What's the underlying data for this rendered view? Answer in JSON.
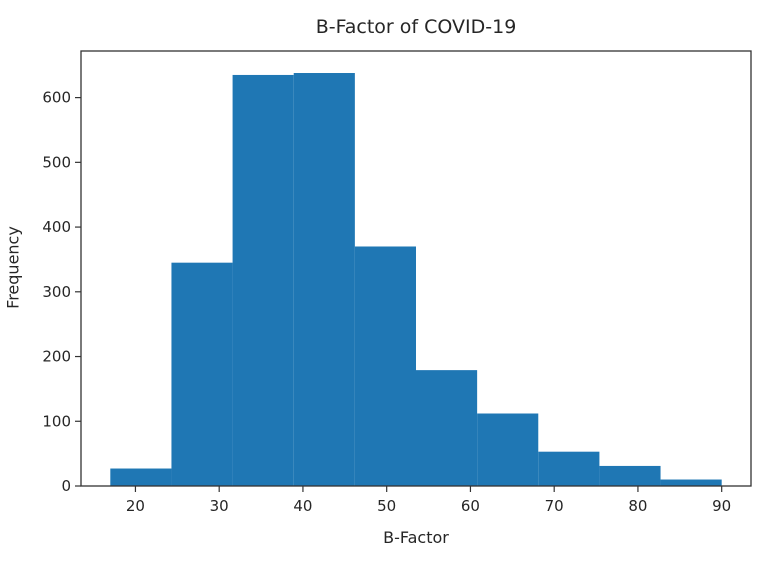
{
  "chart_data": {
    "type": "bar",
    "subtype": "histogram",
    "title": "B-Factor of COVID-19",
    "xlabel": "B-Factor",
    "ylabel": "Frequency",
    "bin_edges": [
      17.0,
      24.3,
      31.6,
      38.9,
      46.2,
      53.5,
      60.8,
      68.1,
      75.4,
      82.7,
      90.0
    ],
    "values": [
      27,
      345,
      635,
      638,
      370,
      179,
      112,
      53,
      31,
      10
    ],
    "xlim": [
      13.5,
      93.5
    ],
    "ylim": [
      0,
      672
    ],
    "xticks": [
      20,
      30,
      40,
      50,
      60,
      70,
      80,
      90
    ],
    "yticks": [
      0,
      100,
      200,
      300,
      400,
      500,
      600
    ],
    "bar_color": "#1f77b4",
    "grid": false,
    "legend": null
  }
}
